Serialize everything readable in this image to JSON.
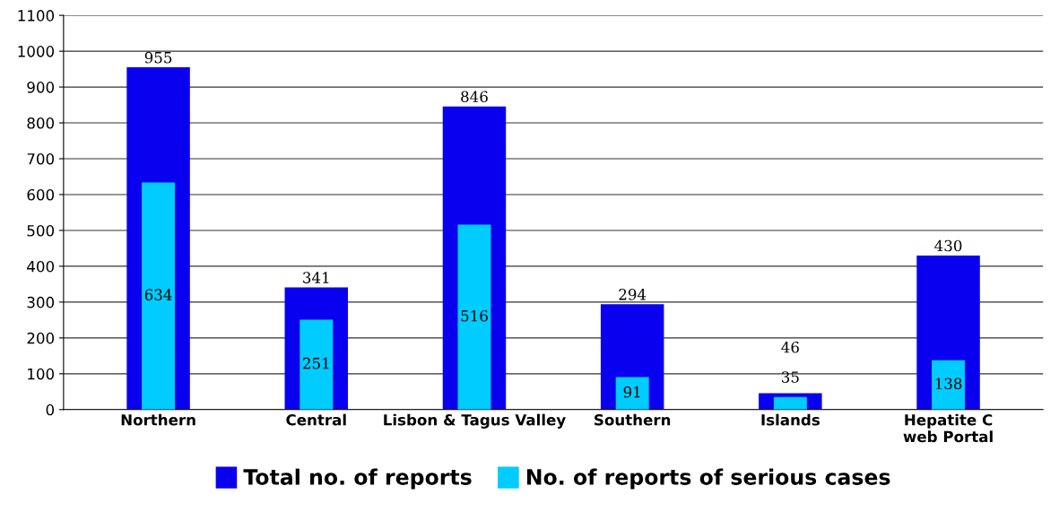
{
  "chart_data": {
    "type": "bar",
    "categories": [
      "Northern",
      "Central",
      "Lisbon & Tagus Valley",
      "Southern",
      "Islands",
      "Hepatite C\nweb Portal"
    ],
    "series": [
      {
        "name": "Total no. of reports",
        "color": "#0a00f0",
        "values": [
          955,
          341,
          846,
          294,
          46,
          430
        ]
      },
      {
        "name": "No. of reports of serious cases",
        "color": "#00ccff",
        "values": [
          634,
          251,
          516,
          91,
          35,
          138
        ]
      }
    ],
    "ylim": [
      0,
      1100
    ],
    "yticks": [
      0,
      100,
      200,
      300,
      400,
      500,
      600,
      700,
      800,
      900,
      1000,
      1100
    ],
    "grid": "y",
    "legend": "bottom",
    "data_labels": true
  }
}
